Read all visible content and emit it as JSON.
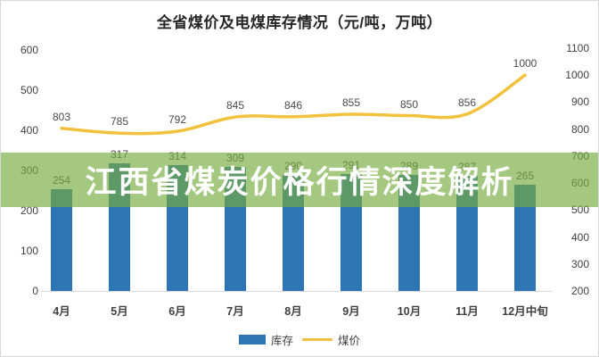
{
  "title": "全省煤价及电煤库存情况（元/吨，万吨）",
  "overlay_banner": {
    "text": "江西省煤炭价格行情深度解析",
    "background_color": "#76AC3E",
    "text_color": "#FFFFFF"
  },
  "legend": {
    "items": [
      {
        "label": "库存",
        "swatch": "bar",
        "color": "#2E75B6"
      },
      {
        "label": "煤价",
        "swatch": "line",
        "color": "#F2C13D"
      }
    ]
  },
  "chart_data": {
    "type": "combo-bar-line",
    "title": "全省煤价及电煤库存情况（元/吨，万吨）",
    "categories": [
      "4月",
      "5月",
      "6月",
      "7月",
      "8月",
      "9月",
      "10月",
      "11月",
      "12月中旬"
    ],
    "series": [
      {
        "name": "库存",
        "type": "bar",
        "axis": "left",
        "color": "#2E75B6",
        "values": [
          254,
          317,
          314,
          309,
          290,
          291,
          289,
          287,
          265
        ],
        "labels_hidden_by_banner_indices": [
          5,
          6
        ]
      },
      {
        "name": "煤价",
        "type": "line",
        "axis": "right",
        "color": "#F2C13D",
        "values": [
          803,
          785,
          792,
          845,
          846,
          855,
          850,
          856,
          1000
        ]
      }
    ],
    "left_axis": {
      "min": 0,
      "max": 600,
      "step": 100
    },
    "right_axis": {
      "min": 200,
      "max": 1100,
      "step": 100
    },
    "grid": "off",
    "legend_position": "bottom"
  }
}
